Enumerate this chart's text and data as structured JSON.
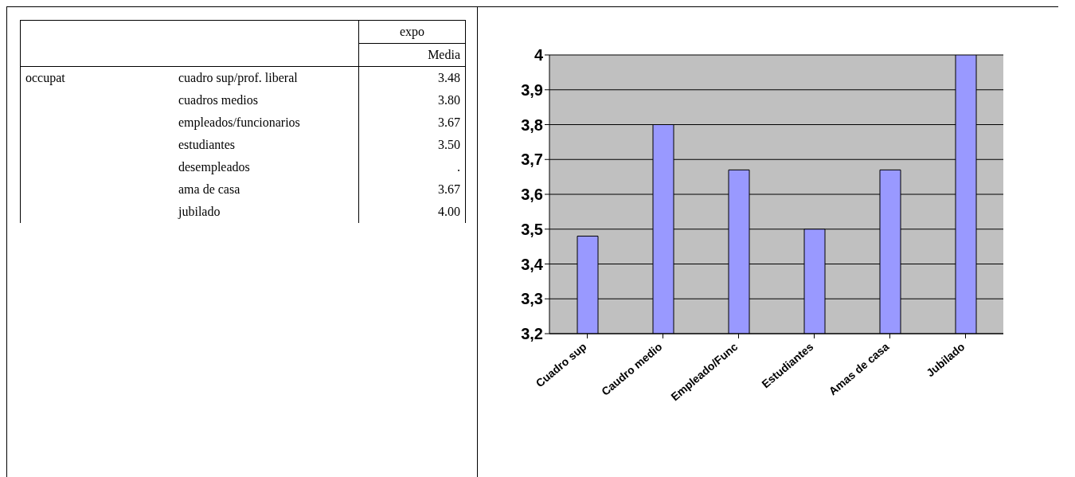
{
  "chart_data": [
    {
      "type": "other",
      "annotations": [
        "expo",
        "Media"
      ],
      "xlabel": "occupat",
      "categories": [
        "cuadro sup/prof. liberal",
        "cuadros medios",
        "empleados/funcionarios",
        "estudiantes",
        "desempleados",
        "ama de casa",
        "jubilado"
      ],
      "value_labels": [
        "3.48",
        "3.80",
        "3.67",
        "3.50",
        ".",
        "3.67",
        "4.00"
      ]
    },
    {
      "type": "bar",
      "categories": [
        "Cuadro sup",
        "Caudro medio",
        "Empleado/Func",
        "Estudiantes",
        "Amas de casa",
        "Jubilado"
      ],
      "values": [
        3.48,
        3.8,
        3.67,
        3.5,
        3.67,
        4.0
      ],
      "color": "#9999ff",
      "ylim": [
        3.2,
        4
      ],
      "yticks": [
        {
          "value": 3.2,
          "label": "3,2"
        },
        {
          "value": 3.3,
          "label": "3,3"
        },
        {
          "value": 3.4,
          "label": "3,4"
        },
        {
          "value": 3.5,
          "label": "3,5"
        },
        {
          "value": 3.6,
          "label": "3,6"
        },
        {
          "value": 3.7,
          "label": "3,7"
        },
        {
          "value": 3.8,
          "label": "3,8"
        },
        {
          "value": 3.9,
          "label": "3,9"
        },
        {
          "value": 4,
          "label": "4"
        }
      ],
      "grid": "y"
    }
  ]
}
